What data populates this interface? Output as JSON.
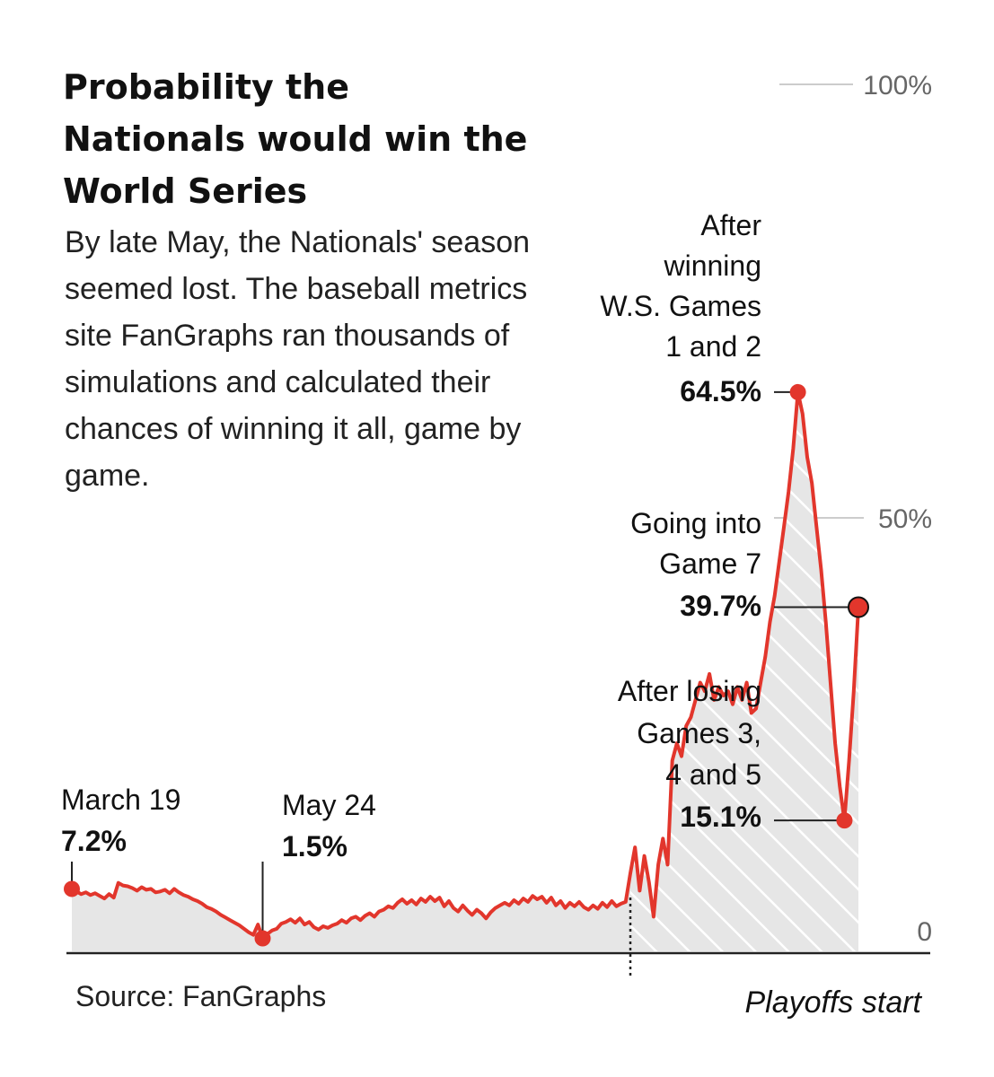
{
  "title": "Probability the Nationals would win the World Series",
  "subtitle": "By late May, the Nationals' season seemed lost. The baseball metrics site FanGraphs ran thousands of simulations and calculated their chances of winning it all, game by game.",
  "source": "Source: FanGraphs",
  "colors": {
    "line": "#e2362c",
    "area": "#e6e6e6",
    "axis": "#222222",
    "grid": "#cccccc"
  },
  "chart_data": {
    "type": "area",
    "x_label_note": "Playoffs start",
    "ylim": [
      0,
      100
    ],
    "y_ticks": [
      {
        "value": 100,
        "label": "100%"
      },
      {
        "value": 50,
        "label": "50%"
      },
      {
        "value": 0,
        "label": "0"
      }
    ],
    "series": [
      {
        "values": [
          7.2,
          6.9,
          6.6,
          6.8,
          6.5,
          6.7,
          6.4,
          6.1,
          6.6,
          6.2,
          7.9,
          7.6,
          7.5,
          7.3,
          7.0,
          7.4,
          7.1,
          7.2,
          6.8,
          6.9,
          7.1,
          6.7,
          7.2,
          6.8,
          6.5,
          6.3,
          6.0,
          5.8,
          5.5,
          5.1,
          4.9,
          4.6,
          4.2,
          3.9,
          3.6,
          3.3,
          3.0,
          2.6,
          2.2,
          1.9,
          3.1,
          1.5,
          2.0,
          2.4,
          2.6,
          3.2,
          3.4,
          3.7,
          3.3,
          3.8,
          3.1,
          3.4,
          2.8,
          2.5,
          2.9,
          2.7,
          3.0,
          3.2,
          3.6,
          3.3,
          3.8,
          4.0,
          3.6,
          4.1,
          4.4,
          4.0,
          4.6,
          4.8,
          5.2,
          5.0,
          5.6,
          6.0,
          5.5,
          5.9,
          5.4,
          6.1,
          5.7,
          6.3,
          5.8,
          6.2,
          5.2,
          5.8,
          5.0,
          4.6,
          5.3,
          4.7,
          4.2,
          4.8,
          4.4,
          3.8,
          4.5,
          5.0,
          5.3,
          5.6,
          5.3,
          5.9,
          5.5,
          6.1,
          5.7,
          6.4,
          6.0,
          6.3,
          5.6,
          6.2,
          5.3,
          5.8,
          5.0,
          5.6,
          5.2,
          5.7,
          5.1,
          4.8,
          5.3,
          4.9,
          5.6,
          5.1,
          5.8,
          5.2,
          5.5,
          5.7,
          9.0,
          12.0,
          7.0,
          11.0,
          8.0,
          4.0,
          10.0,
          13.0,
          10.0,
          22.0,
          24.0,
          22.5,
          26.0,
          27.0,
          29.0,
          31.0,
          30.0,
          32.0,
          29.0,
          30.5,
          29.5,
          30.0,
          28.5,
          30.5,
          29.0,
          31.0,
          27.5,
          28.0,
          31.0,
          34.0,
          38.0,
          41.0,
          45.0,
          49.0,
          53.0,
          58.0,
          64.5,
          62.0,
          57.0,
          54.0,
          49.0,
          44.0,
          38.0,
          31.0,
          24.0,
          19.0,
          15.1,
          22.0,
          30.0,
          39.7
        ]
      }
    ],
    "annotations": [
      {
        "date": "March 19",
        "value_label": "7.2%",
        "value": 7.2
      },
      {
        "date": "May 24",
        "value_label": "1.5%",
        "value": 1.5
      },
      {
        "text_lines": [
          "After",
          "winning",
          "W.S. Games",
          "1 and 2"
        ],
        "value_label": "64.5%",
        "value": 64.5
      },
      {
        "text_lines": [
          "Going into",
          "Game 7"
        ],
        "value_label": "39.7%",
        "value": 39.7
      },
      {
        "text_lines": [
          "After losing",
          "Games 3,",
          "4 and 5"
        ],
        "value_label": "15.1%",
        "value": 15.1
      }
    ]
  }
}
